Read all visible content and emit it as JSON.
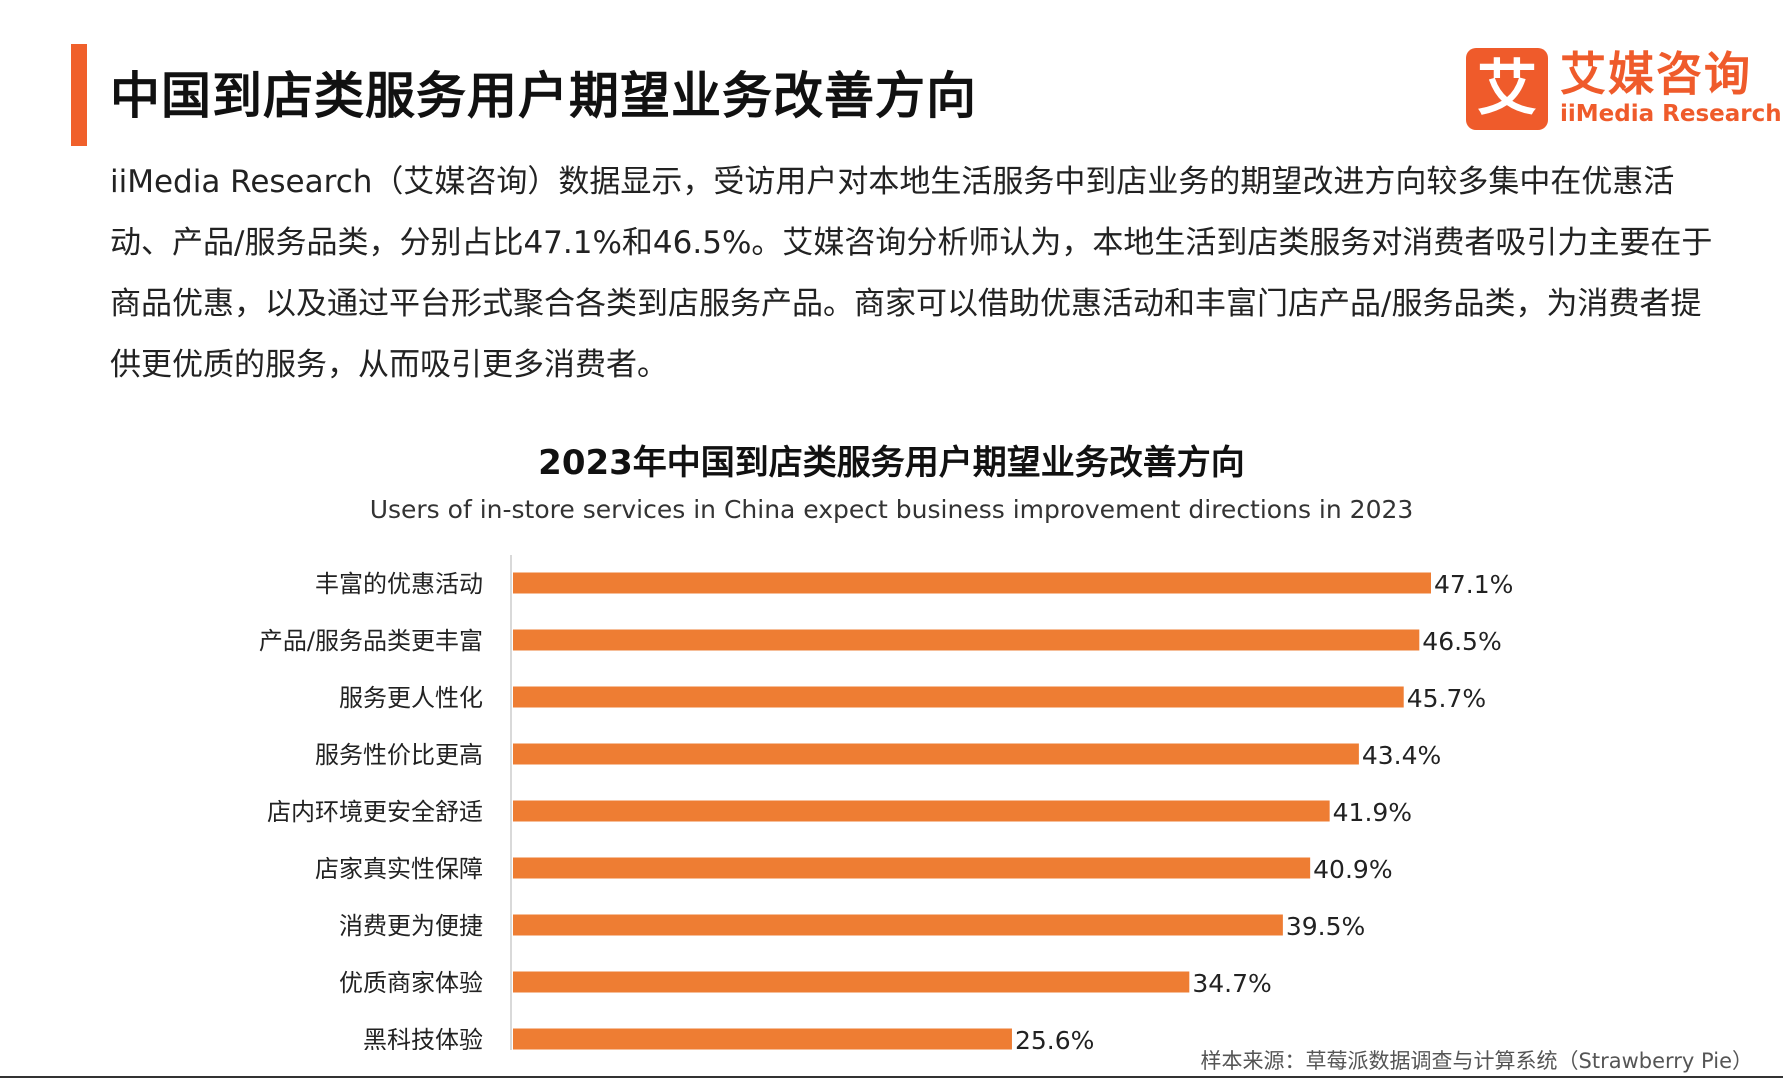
{
  "header": {
    "title": "中国到店类服务用户期望业务改善方向"
  },
  "logo": {
    "mark": "艾",
    "name_cn": "艾媒咨询",
    "name_en": "iiMedia Research"
  },
  "intro": {
    "text": "iiMedia Research（艾媒咨询）数据显示，受访用户对本地生活服务中到店业务的期望改进方向较多集中在优惠活动、产品/服务品类，分别占比47.1%和46.5%。艾媒咨询分析师认为，本地生活到店类服务对消费者吸引力主要在于商品优惠，以及通过平台形式聚合各类到店服务产品。商家可以借助优惠活动和丰富门店产品/服务品类，为消费者提供更优质的服务，从而吸引更多消费者。"
  },
  "chart_data": {
    "type": "bar",
    "orientation": "horizontal",
    "title": "2023年中国到店类服务用户期望业务改善方向",
    "subtitle": "Users of in-store services in China expect business improvement directions in 2023",
    "categories": [
      "丰富的优惠活动",
      "产品/服务品类更丰富",
      "服务更人性化",
      "服务性价比更高",
      "店内环境更安全舒适",
      "店家真实性保障",
      "消费更为便捷",
      "优质商家体验",
      "黑科技体验"
    ],
    "values": [
      47.1,
      46.5,
      45.7,
      43.4,
      41.9,
      40.9,
      39.5,
      34.7,
      25.6
    ],
    "value_labels": [
      "47.1%",
      "46.5%",
      "45.7%",
      "43.4%",
      "41.9%",
      "40.9%",
      "39.5%",
      "34.7%",
      "25.6%"
    ],
    "xlim": [
      0,
      50
    ],
    "bar_color": "#ee7d33",
    "grid": false,
    "legend": "none"
  },
  "source": {
    "text": "样本来源：草莓派数据调查与计算系统（Strawberry Pie）"
  }
}
